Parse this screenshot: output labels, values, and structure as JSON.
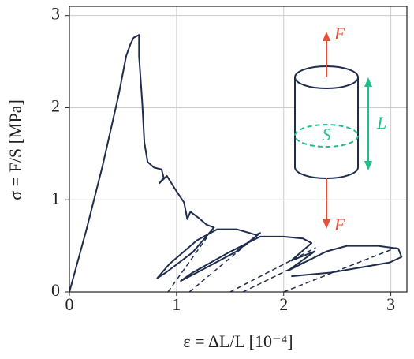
{
  "chart_data": {
    "type": "line",
    "xlabel": "ε = ΔL/L [10⁻⁴]",
    "ylabel": "σ = F/S [MPa]",
    "xlim": [
      0,
      3.15
    ],
    "ylim": [
      0,
      3.1
    ],
    "xticks": [
      0,
      1,
      2,
      3
    ],
    "yticks": [
      0,
      1,
      2,
      3
    ],
    "grid": true,
    "series": [
      {
        "color": "#1f2d4d",
        "dashed": false,
        "x": [
          0,
          0.16,
          0.31,
          0.46,
          0.53,
          0.57,
          0.6,
          0.65,
          0.65,
          0.68,
          0.7,
          0.73,
          0.79,
          0.86,
          0.88,
          0.84,
          0.91,
          0.99,
          1.07,
          1.1,
          1.13,
          1.21,
          1.28,
          1.35,
          1.15,
          0.9,
          0.82,
          0.93,
          1.19,
          1.38,
          1.56,
          1.74,
          1.78,
          1.56,
          1.19,
          1.04,
          1.15,
          1.49,
          1.78,
          2.0,
          2.18,
          2.26,
          2.07,
          2.29,
          2.04,
          2.4,
          2.59,
          2.88,
          3.07,
          3.1,
          2.99,
          2.44,
          2.07
        ],
        "values": [
          0,
          0.68,
          1.37,
          2.14,
          2.56,
          2.69,
          2.76,
          2.79,
          2.56,
          2.05,
          1.62,
          1.41,
          1.35,
          1.33,
          1.24,
          1.18,
          1.26,
          1.11,
          0.97,
          0.79,
          0.87,
          0.8,
          0.73,
          0.7,
          0.43,
          0.21,
          0.15,
          0.3,
          0.56,
          0.68,
          0.68,
          0.62,
          0.64,
          0.44,
          0.21,
          0.12,
          0.21,
          0.43,
          0.6,
          0.6,
          0.58,
          0.53,
          0.34,
          0.44,
          0.23,
          0.44,
          0.5,
          0.5,
          0.47,
          0.38,
          0.32,
          0.21,
          0.17
        ]
      },
      {
        "color": "#1f2d4d",
        "dashed": true,
        "x": [
          0.92,
          1.35
        ],
        "values": [
          0,
          0.7
        ]
      },
      {
        "color": "#1f2d4d",
        "dashed": true,
        "x": [
          1.12,
          1.76
        ],
        "values": [
          0,
          0.62
        ]
      },
      {
        "color": "#1f2d4d",
        "dashed": true,
        "x": [
          1.5,
          2.3
        ],
        "values": [
          0,
          0.48
        ]
      },
      {
        "color": "#1f2d4d",
        "dashed": true,
        "x": [
          1.62,
          2.36
        ],
        "values": [
          0,
          0.42
        ]
      },
      {
        "color": "#1f2d4d",
        "dashed": true,
        "x": [
          2.0,
          3.05
        ],
        "values": [
          0,
          0.48
        ]
      }
    ],
    "annotations": [
      "F",
      "F",
      "L",
      "S"
    ]
  }
}
